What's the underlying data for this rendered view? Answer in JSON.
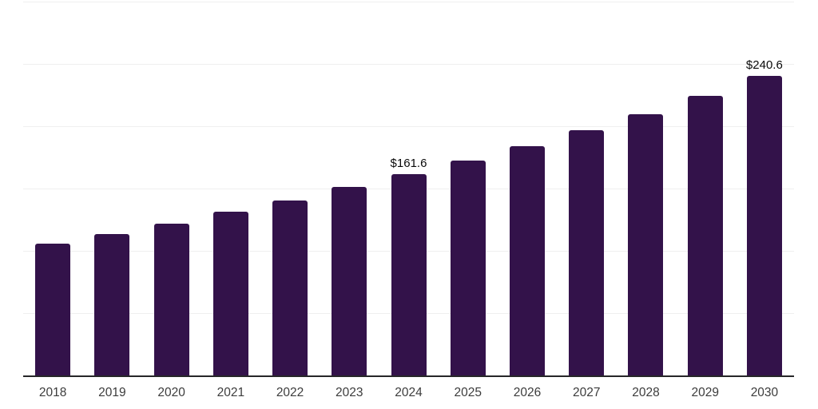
{
  "chart_data": {
    "type": "bar",
    "title": "",
    "xlabel": "",
    "ylabel": "",
    "categories": [
      "2018",
      "2019",
      "2020",
      "2021",
      "2022",
      "2023",
      "2024",
      "2025",
      "2026",
      "2027",
      "2028",
      "2029",
      "2030"
    ],
    "values": [
      105.5,
      113.4,
      122.0,
      131.2,
      140.7,
      151.5,
      161.6,
      172.4,
      183.8,
      196.6,
      209.8,
      224.4,
      240.6
    ],
    "data_labels": [
      "",
      "",
      "",
      "",
      "",
      "",
      "$161.6",
      "",
      "",
      "",
      "",
      "",
      "$240.6"
    ],
    "ylim": [
      0,
      300
    ],
    "yticks": [
      0,
      50,
      100,
      150,
      200,
      250,
      300
    ],
    "grid": "horizontal",
    "legend": "none",
    "colors": {
      "bar": "#33124A",
      "axis_line": "#262628",
      "gridline": "#efefef",
      "tick_label": "#3c3c3c",
      "data_label": "#0a0a0a"
    }
  }
}
